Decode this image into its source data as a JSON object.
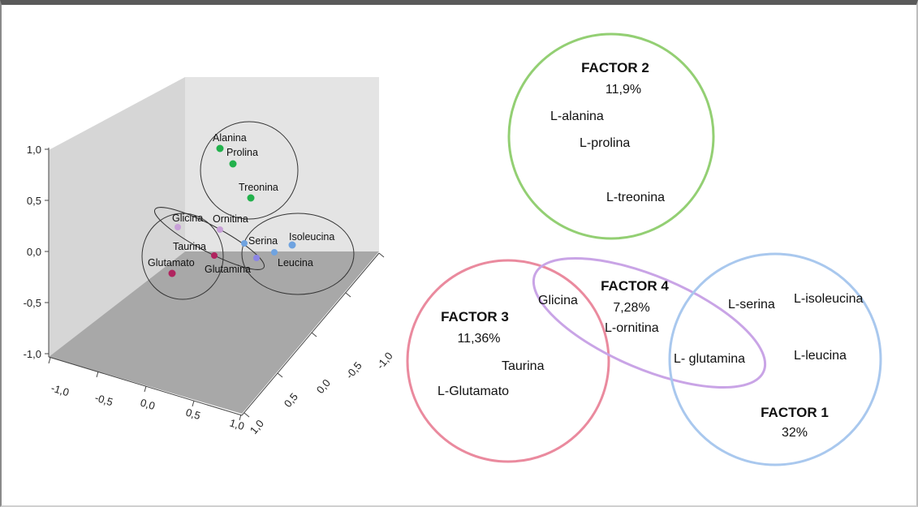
{
  "chart_data": [
    {
      "type": "scatter",
      "dimensions": 3,
      "axis_ticks": {
        "vertical": [
          "1,0",
          "0,5",
          "0,0",
          "-0,5",
          "-1,0"
        ],
        "front_left": [
          "-1,0",
          "-0,5",
          "0,0",
          "0,5",
          "1,0"
        ],
        "front_right": [
          "1,0",
          "0,5",
          "0,0",
          "-0,5",
          "-1,0"
        ]
      },
      "colors": {
        "green": "#22b14c",
        "blue": "#6fa3e0",
        "violet": "#8b85e6",
        "pink": "#c8a0d8",
        "magenta": "#b0245f"
      },
      "points": [
        {
          "label": "Alanina",
          "color": "green"
        },
        {
          "label": "Prolina",
          "color": "green"
        },
        {
          "label": "Treonina",
          "color": "green"
        },
        {
          "label": "Glicina",
          "color": "pink"
        },
        {
          "label": "Ornitina",
          "color": "pink"
        },
        {
          "label": "Taurina",
          "color": "magenta"
        },
        {
          "label": "Glutamato",
          "color": "magenta"
        },
        {
          "label": "Glutamina",
          "color": "violet"
        },
        {
          "label": "Serina",
          "color": "blue"
        },
        {
          "label": "Isoleucina",
          "color": "blue"
        },
        {
          "label": "Leucina",
          "color": "blue"
        }
      ]
    },
    {
      "type": "venn",
      "factors": [
        {
          "name": "FACTOR 2",
          "percent": "11,9%",
          "color": "#93cf73",
          "members": [
            "L-alanina",
            "L-prolina",
            "L-treonina"
          ]
        },
        {
          "name": "FACTOR 3",
          "percent": "11,36%",
          "color": "#ea8a9e",
          "members": [
            "Taurina",
            "L-Glutamato"
          ]
        },
        {
          "name": "FACTOR 4",
          "percent": "7,28%",
          "color": "#c9a4e6",
          "members": [
            "Glicina",
            "L-ornitina"
          ]
        },
        {
          "name": "FACTOR 1",
          "percent": "32%",
          "color": "#a9c8ee",
          "members": [
            "L-serina",
            "L-isoleucina",
            "L-leucina"
          ]
        }
      ],
      "shared": [
        "L- glutamina"
      ]
    }
  ]
}
